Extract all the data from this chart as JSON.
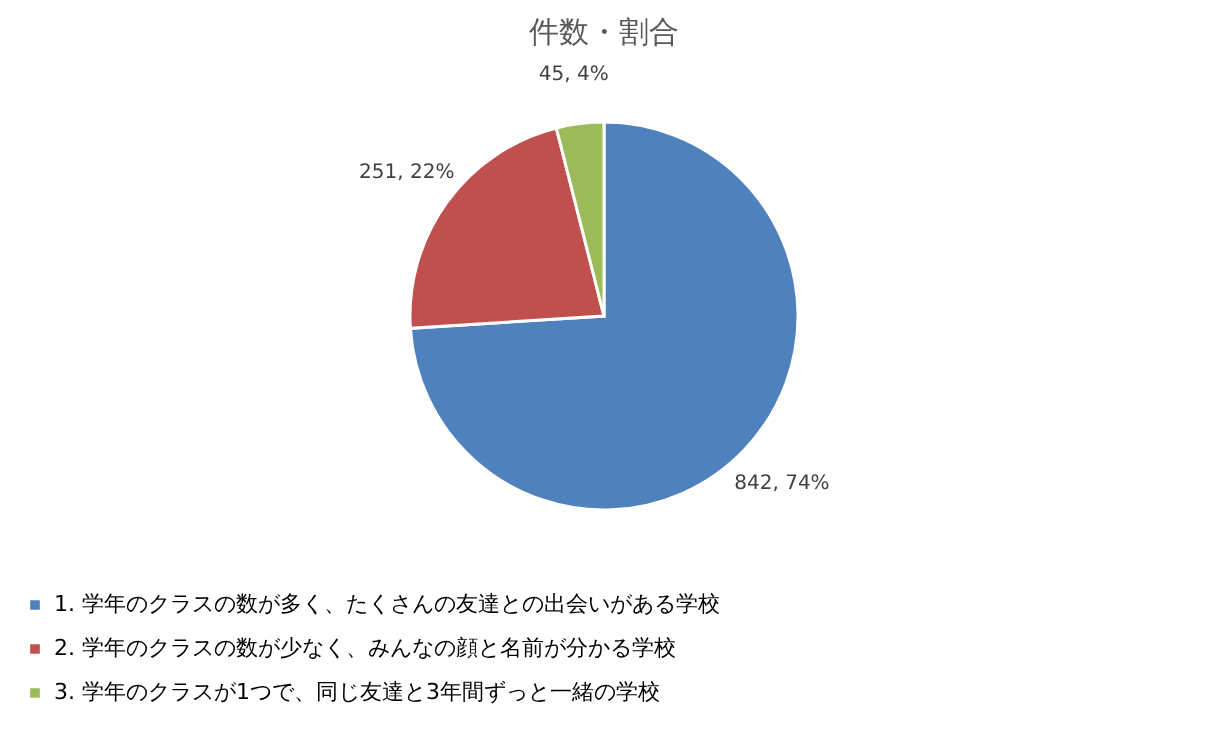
{
  "chart_data": {
    "type": "pie",
    "title": "件数・割合",
    "categories": [
      "1. 学年のクラスの数が多く、たくさんの友達との出会いがある学校",
      "2. 学年のクラスの数が少なく、みんなの顔と名前が分かる学校",
      "3. 学年のクラスが1つで、同じ友達と3年間ずっと一緒の学校"
    ],
    "values": [
      842,
      251,
      45
    ],
    "colors": [
      "#4f81bd",
      "#c0504d",
      "#9bbb59"
    ],
    "value_labels": [
      "842, 74%",
      "251, 22%",
      "45, 4%"
    ],
    "legend": "bottom"
  }
}
